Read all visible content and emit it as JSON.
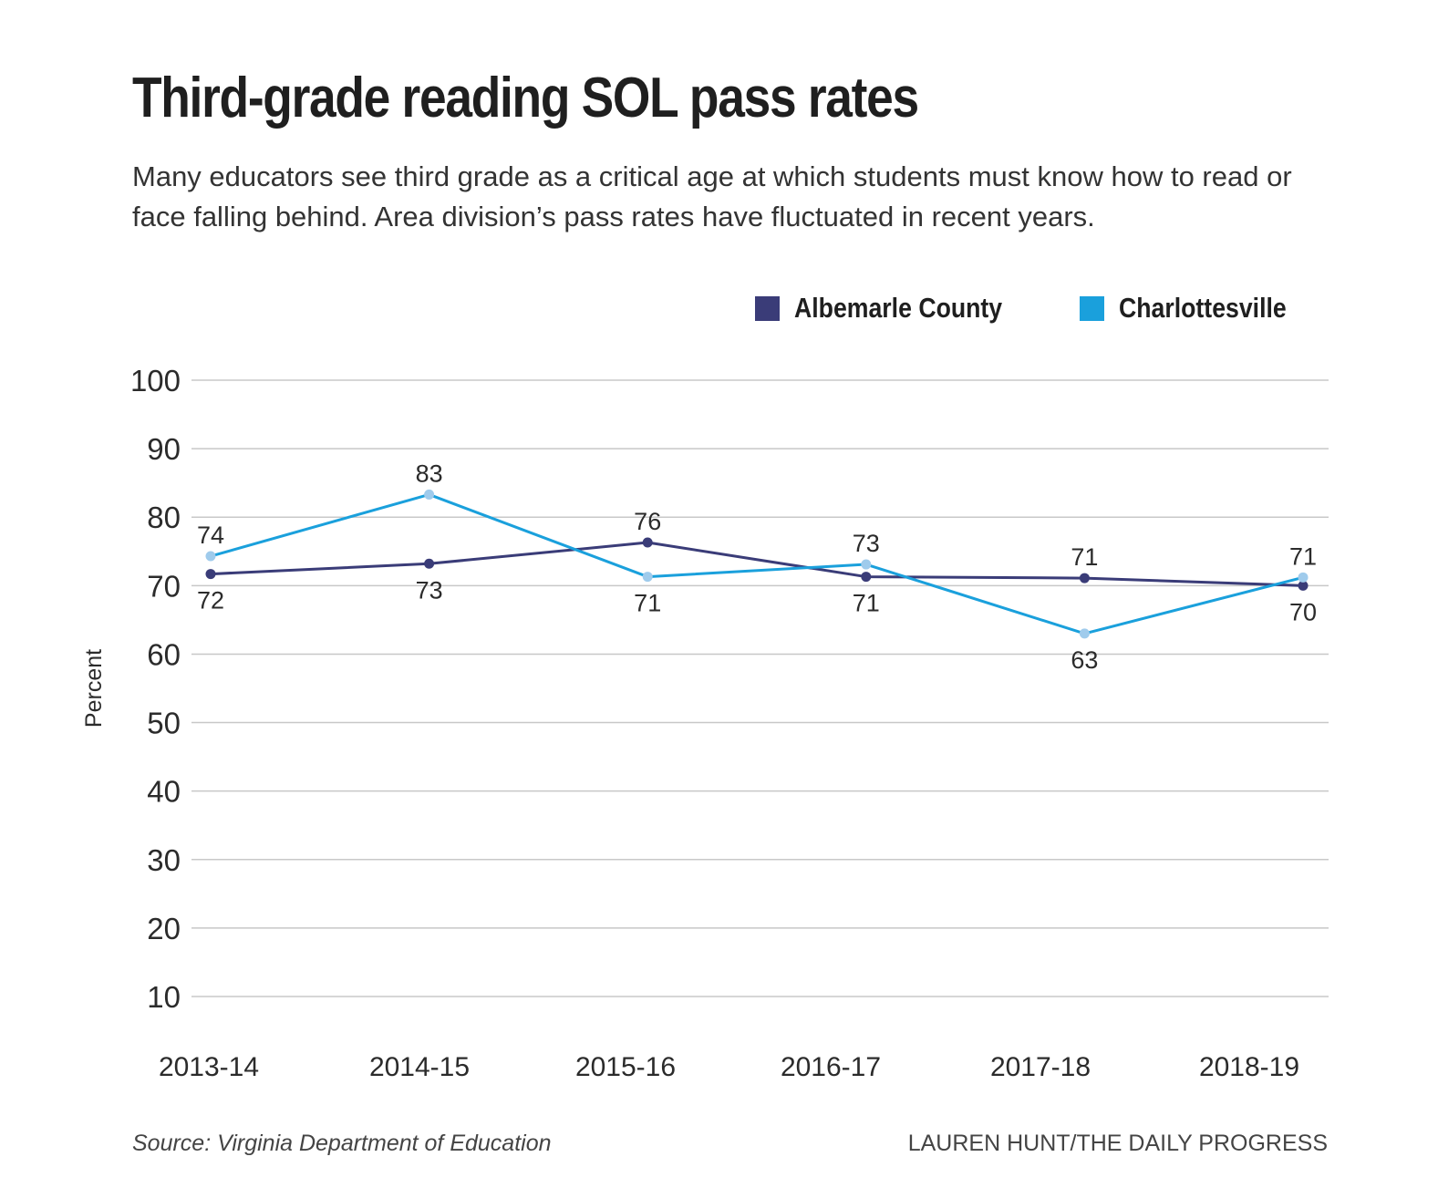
{
  "header": {
    "title": "Third-grade reading SOL pass rates",
    "subtitle": "Many educators see third grade as a critical age at which students must know how to read or face falling behind. Area division’s pass rates have fluctuated in recent years."
  },
  "colors": {
    "albemarle": "#3a3c78",
    "charlottesville": "#1aa0dc",
    "charlottesville_marker": "#9fcbec",
    "grid": "#c8c8c8",
    "text": "#2b2b2b"
  },
  "chart_data": {
    "type": "line",
    "title": "Third-grade reading SOL pass rates",
    "xlabel": "",
    "ylabel": "Percent",
    "ylim": [
      10,
      100
    ],
    "yticks": [
      100,
      90,
      80,
      70,
      60,
      50,
      40,
      30,
      20,
      10
    ],
    "grid": true,
    "legend_position": "top-right",
    "categories": [
      "2013-14",
      "2014-15",
      "2015-16",
      "2016-17",
      "2017-18",
      "2018-19"
    ],
    "series": [
      {
        "name": "Albemarle County",
        "values": [
          71.7,
          73.2,
          76.3,
          71.3,
          71.1,
          70.0
        ],
        "labels": [
          "72",
          "73",
          "76",
          "71",
          "71",
          "70"
        ],
        "label_positions": [
          "below",
          "below",
          "above",
          "below",
          "above",
          "below"
        ]
      },
      {
        "name": "Charlottesville",
        "values": [
          74.3,
          83.3,
          71.3,
          73.1,
          63.0,
          71.2
        ],
        "labels": [
          "74",
          "83",
          "71",
          "73",
          "63",
          "71"
        ],
        "label_positions": [
          "above",
          "above",
          "below",
          "above",
          "below",
          "above"
        ]
      }
    ]
  },
  "footer": {
    "source": "Source: Virginia Department of Education",
    "credit": "LAUREN HUNT/THE DAILY PROGRESS"
  }
}
